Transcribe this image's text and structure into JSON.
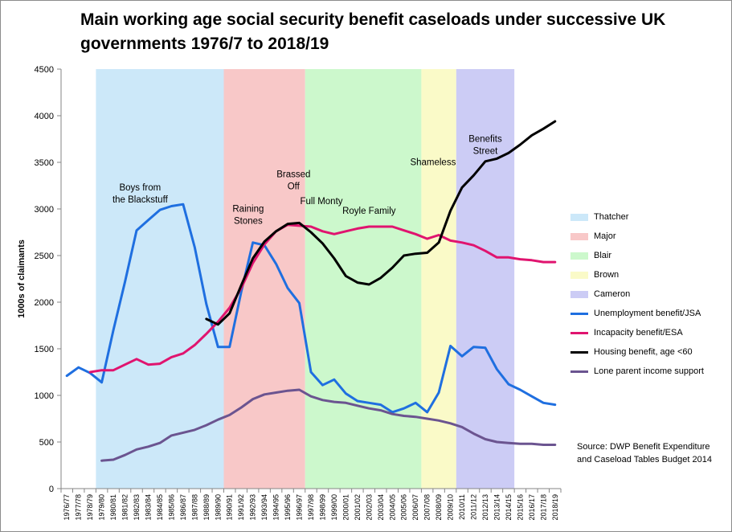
{
  "chart_data": {
    "type": "line",
    "title": "Main working age social security benefit caseloads under successive UK governments 1976/7  to 2018/19",
    "xlabel": "",
    "ylabel": "1000s of claimants",
    "ylim": [
      0,
      4500
    ],
    "yticks": [
      0,
      500,
      1000,
      1500,
      2000,
      2500,
      3000,
      3500,
      4000,
      4500
    ],
    "categories": [
      "1976/77",
      "1977/78",
      "1978/79",
      "1979/80",
      "1980/81",
      "1981/82",
      "1982/83",
      "1983/84",
      "1984/85",
      "1985/86",
      "1986/87",
      "1987/88",
      "1988/89",
      "1989/90",
      "1990/91",
      "1991/92",
      "1992/93",
      "1993/94",
      "1994/95",
      "1995/96",
      "1996/97",
      "1997/98",
      "1998/99",
      "1999/00",
      "2000/01",
      "2001/02",
      "2002/03",
      "2003/04",
      "2004/05",
      "2005/06",
      "2006/07",
      "2007/08",
      "2008/09",
      "2009/10",
      "2010/11",
      "2011/12",
      "2012/13",
      "2013/14",
      "2014/15",
      "2015/16",
      "2016/17",
      "2017/18",
      "2018/19"
    ],
    "grid": false,
    "legend_position": "right",
    "periods": [
      {
        "name": "Thatcher",
        "start_index": 2.5,
        "end_index": 13.5,
        "color": "#cce8f9"
      },
      {
        "name": "Major",
        "start_index": 13.5,
        "end_index": 20.5,
        "color": "#f8c8c8"
      },
      {
        "name": "Blair",
        "start_index": 20.5,
        "end_index": 30.5,
        "color": "#ccf8cc"
      },
      {
        "name": "Brown",
        "start_index": 30.5,
        "end_index": 33.5,
        "color": "#fafac8"
      },
      {
        "name": "Cameron",
        "start_index": 33.5,
        "end_index": 38.5,
        "color": "#ccccf5"
      }
    ],
    "series": [
      {
        "name": "Unemployment benefit/JSA",
        "color": "#1f6fe0",
        "values": [
          1210,
          1300,
          1240,
          1140,
          1700,
          2220,
          2770,
          2880,
          2990,
          3030,
          3050,
          2590,
          1980,
          1520,
          1520,
          2110,
          2640,
          2610,
          2410,
          2150,
          1990,
          1250,
          1110,
          1170,
          1020,
          940,
          920,
          900,
          820,
          860,
          920,
          820,
          1030,
          1530,
          1420,
          1520,
          1510,
          1280,
          1120,
          1060,
          990,
          920,
          900
        ]
      },
      {
        "name": "Incapacity benefit/ESA",
        "color": "#e0146f",
        "values": [
          null,
          null,
          1250,
          1270,
          1270,
          1330,
          1390,
          1330,
          1340,
          1410,
          1450,
          1540,
          1660,
          1790,
          1940,
          2150,
          2420,
          2620,
          2760,
          2830,
          2820,
          2810,
          2760,
          2730,
          2760,
          2790,
          2810,
          2810,
          2810,
          2770,
          2730,
          2680,
          2720,
          2660,
          2640,
          2610,
          2550,
          2480,
          2480,
          2460,
          2450,
          2430,
          2430
        ]
      },
      {
        "name": "Housing benefit, age <60",
        "color": "#000000",
        "values": [
          null,
          null,
          null,
          null,
          null,
          null,
          null,
          null,
          null,
          null,
          null,
          null,
          1820,
          1760,
          1880,
          2180,
          2470,
          2650,
          2760,
          2840,
          2850,
          2750,
          2630,
          2470,
          2280,
          2210,
          2190,
          2260,
          2370,
          2500,
          2520,
          2530,
          2640,
          2980,
          3230,
          3360,
          3510,
          3540,
          3600,
          3690,
          3790,
          3860,
          3940
        ]
      },
      {
        "name": "Lone parent income support",
        "color": "#6b5490",
        "values": [
          null,
          null,
          null,
          300,
          310,
          360,
          420,
          450,
          490,
          570,
          600,
          630,
          680,
          740,
          790,
          870,
          960,
          1010,
          1030,
          1050,
          1060,
          990,
          950,
          930,
          920,
          890,
          860,
          840,
          800,
          780,
          770,
          750,
          730,
          700,
          660,
          590,
          530,
          500,
          490,
          480,
          480,
          470,
          470
        ]
      }
    ],
    "annotations": [
      {
        "lines": [
          "Boys from",
          "the Blackstuff"
        ],
        "x_index": 6.3,
        "y": 3200
      },
      {
        "lines": [
          "Raining",
          "Stones"
        ],
        "x_index": 15.6,
        "y": 2970
      },
      {
        "lines": [
          "Brassed",
          "Off"
        ],
        "x_index": 19.5,
        "y": 3340
      },
      {
        "lines": [
          "Full Monty"
        ],
        "x_index": 21.9,
        "y": 3050
      },
      {
        "lines": [
          "Royle Family"
        ],
        "x_index": 26.0,
        "y": 2950
      },
      {
        "lines": [
          "Shameless"
        ],
        "x_index": 31.5,
        "y": 3470
      },
      {
        "lines": [
          "Benefits",
          "Street"
        ],
        "x_index": 36.0,
        "y": 3720
      }
    ]
  },
  "source": "Source: DWP Benefit Expenditure and Caseload Tables Budget 2014"
}
